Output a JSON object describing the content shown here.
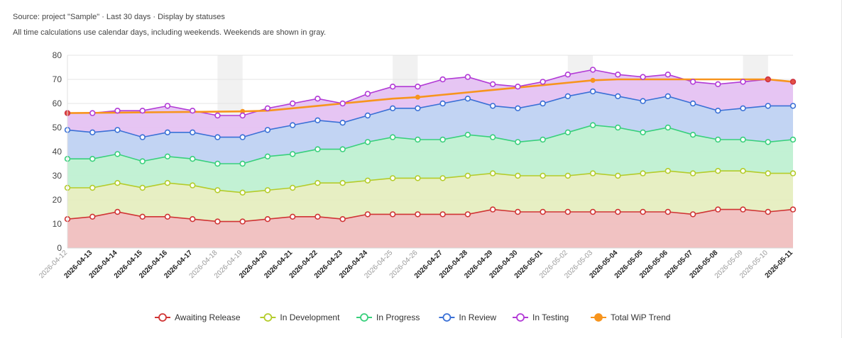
{
  "header": {
    "source_line": "Source: project \"Sample\" · Last 30 days · Display by statuses",
    "note_line": "All time calculations use calendar days, including weekends. Weekends are shown in gray."
  },
  "chart_data": {
    "type": "area",
    "stacked": true,
    "categories": [
      "2026-04-12",
      "2026-04-13",
      "2026-04-14",
      "2026-04-15",
      "2026-04-16",
      "2026-04-17",
      "2026-04-18",
      "2026-04-19",
      "2026-04-20",
      "2026-04-21",
      "2026-04-22",
      "2026-04-23",
      "2026-04-24",
      "2026-04-25",
      "2026-04-26",
      "2026-04-27",
      "2026-04-28",
      "2026-04-29",
      "2026-04-30",
      "2026-05-01",
      "2026-05-02",
      "2026-05-03",
      "2026-05-04",
      "2026-05-05",
      "2026-05-06",
      "2026-05-07",
      "2026-05-08",
      "2026-05-09",
      "2026-05-10",
      "2026-05-11"
    ],
    "weekend_dates": [
      "2026-04-12",
      "2026-04-18",
      "2026-04-19",
      "2026-04-25",
      "2026-04-26",
      "2026-05-02",
      "2026-05-03",
      "2026-05-09",
      "2026-05-10"
    ],
    "ylim": [
      0,
      80
    ],
    "yticks": [
      0,
      10,
      20,
      30,
      40,
      50,
      60,
      70,
      80
    ],
    "grid": true,
    "legend_position": "bottom",
    "series": [
      {
        "name": "Awaiting Release",
        "color": "#d03434",
        "fill": "#f0bfbf",
        "values": [
          12,
          13,
          15,
          13,
          13,
          12,
          11,
          11,
          12,
          13,
          13,
          12,
          14,
          14,
          14,
          14,
          14,
          16,
          15,
          15,
          15,
          15,
          15,
          15,
          15,
          14,
          16,
          16,
          15,
          16
        ]
      },
      {
        "name": "In Development",
        "color": "#b4cc2a",
        "fill": "#e6eec0",
        "values": [
          25,
          25,
          27,
          25,
          27,
          26,
          24,
          23,
          24,
          25,
          27,
          27,
          28,
          29,
          29,
          29,
          30,
          31,
          30,
          30,
          30,
          31,
          30,
          31,
          32,
          31,
          32,
          32,
          31,
          31
        ]
      },
      {
        "name": "In Progress",
        "color": "#38d07c",
        "fill": "#bff0d2",
        "values": [
          37,
          37,
          39,
          36,
          38,
          37,
          35,
          35,
          38,
          39,
          41,
          41,
          44,
          46,
          45,
          45,
          47,
          46,
          44,
          45,
          48,
          51,
          50,
          48,
          50,
          47,
          45,
          45,
          44,
          45
        ]
      },
      {
        "name": "In Review",
        "color": "#3a70d6",
        "fill": "#bfd2f2",
        "values": [
          49,
          48,
          49,
          46,
          48,
          48,
          46,
          46,
          49,
          51,
          53,
          52,
          55,
          58,
          58,
          60,
          62,
          59,
          58,
          60,
          63,
          65,
          63,
          61,
          63,
          60,
          57,
          58,
          59,
          59
        ]
      },
      {
        "name": "In Testing",
        "color": "#b23ad6",
        "fill": "#e5c2f2",
        "values": [
          56,
          56,
          57,
          57,
          59,
          57,
          55,
          55,
          58,
          60,
          62,
          60,
          64,
          67,
          67,
          70,
          71,
          68,
          67,
          69,
          72,
          74,
          72,
          71,
          72,
          69,
          68,
          69,
          70,
          69
        ]
      }
    ],
    "trend": {
      "name": "Total WiP Trend",
      "color": "#f7941d",
      "values": [
        56,
        56.1,
        56.2,
        56.3,
        56.4,
        56.5,
        56.6,
        56.7,
        57.0,
        58.0,
        59.0,
        60.0,
        61.0,
        62.0,
        62.6,
        63.6,
        64.6,
        65.6,
        66.6,
        67.6,
        68.6,
        69.6,
        70,
        70,
        70,
        70,
        70,
        70,
        70,
        69
      ]
    }
  }
}
